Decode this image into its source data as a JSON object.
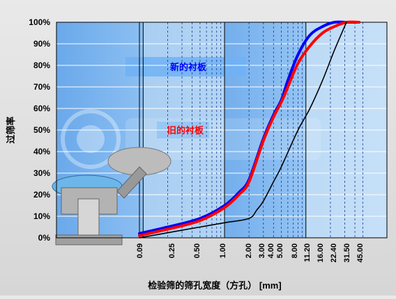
{
  "chart_data": {
    "type": "line",
    "xlabel": "检验筛的筛孔宽度（方孔） [mm]",
    "ylabel": "过筛率",
    "x_scale": "log",
    "xlim": [
      0.09,
      45.0
    ],
    "ylim": [
      0,
      100
    ],
    "x_ticks": [
      "0.09",
      "0.25",
      "0.50",
      "1.00",
      "2.00",
      "3.00",
      "4.00",
      "5.00",
      "8.00",
      "11.20",
      "16.00",
      "22.40",
      "31.50",
      "45.00"
    ],
    "y_ticks": [
      "0%",
      "10%",
      "20%",
      "30%",
      "40%",
      "50%",
      "60%",
      "70%",
      "80%",
      "90%",
      "100%"
    ],
    "grid": true,
    "annotations": [
      {
        "text": "新的衬板",
        "color": "#0000ff"
      },
      {
        "text": "旧的衬板",
        "color": "#ff0000"
      }
    ],
    "series": [
      {
        "color": "#0000ff",
        "x": [
          0.09,
          0.2,
          0.5,
          1.0,
          1.5,
          2.0,
          3.0,
          4.0,
          5.0,
          6.0,
          8.0,
          11.2,
          16.0,
          22.4,
          31.5,
          45.0
        ],
        "y": [
          2,
          5,
          9,
          15,
          21,
          27,
          46,
          57,
          64,
          73,
          85,
          94,
          98,
          100,
          100,
          100
        ]
      },
      {
        "color": "#ff0000",
        "x": [
          0.09,
          0.2,
          0.5,
          1.0,
          1.5,
          2.0,
          3.0,
          4.0,
          5.0,
          6.0,
          8.0,
          11.2,
          16.0,
          22.4,
          31.5,
          45.0
        ],
        "y": [
          1,
          4,
          8,
          14,
          20,
          26,
          45,
          56,
          63,
          70,
          81,
          89,
          95,
          98,
          100,
          100
        ]
      },
      {
        "color": "#000000",
        "x": [
          0.09,
          0.25,
          0.5,
          1.0,
          2.0,
          2.5,
          3.0,
          4.0,
          5.0,
          8.0,
          11.2,
          16.0,
          22.4,
          31.5
        ],
        "y": [
          0,
          3,
          5,
          7,
          9,
          13,
          17,
          26,
          33,
          50,
          60,
          73,
          87,
          100
        ]
      }
    ]
  }
}
